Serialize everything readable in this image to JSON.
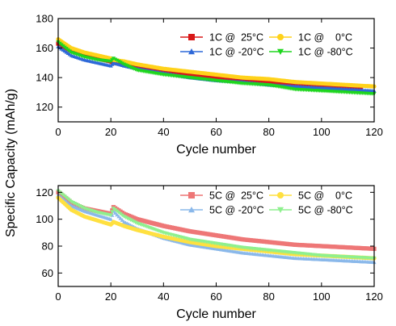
{
  "figure": {
    "ylabel_shared": "Specific Capacity (mAh/g)"
  },
  "chart_data": [
    {
      "type": "scatter",
      "xlabel": "Cycle number",
      "ylabel": "Specific Capacity (mAh/g)",
      "xlim": [
        0,
        120
      ],
      "ylim": [
        110,
        180
      ],
      "xticks": [
        0,
        20,
        40,
        60,
        80,
        100,
        120
      ],
      "yticks": [
        120,
        140,
        160,
        180
      ],
      "grid": false,
      "legend": "top-right",
      "series": [
        {
          "name": "1C @  25°C",
          "color": "#d81818",
          "marker": "square",
          "x": [
            0,
            5,
            10,
            15,
            20,
            21,
            25,
            30,
            40,
            50,
            60,
            70,
            80,
            90,
            100,
            110,
            115
          ],
          "y": [
            163,
            158,
            155,
            153,
            151,
            150,
            149,
            147,
            144,
            142,
            140,
            138,
            137,
            135,
            134,
            133,
            132
          ]
        },
        {
          "name": "1C @ -20°C",
          "color": "#2d68d8",
          "marker": "triangle",
          "x": [
            0,
            5,
            10,
            15,
            20,
            21,
            25,
            30,
            40,
            50,
            60,
            70,
            80,
            90,
            100,
            110,
            120
          ],
          "y": [
            161,
            155,
            152,
            150,
            148,
            150,
            148,
            146,
            143,
            140,
            138,
            137,
            135,
            134,
            133,
            132,
            131
          ]
        },
        {
          "name": "1C @    0°C",
          "color": "#ffd21a",
          "marker": "circle",
          "x": [
            0,
            5,
            10,
            15,
            20,
            21,
            25,
            30,
            40,
            50,
            60,
            70,
            80,
            90,
            100,
            110,
            120
          ],
          "y": [
            166,
            160,
            157,
            155,
            153,
            152,
            151,
            149,
            146,
            144,
            142,
            140,
            139,
            137,
            136,
            135,
            134
          ]
        },
        {
          "name": "1C @ -80°C",
          "color": "#1ed61e",
          "marker": "triangle-down",
          "x": [
            0,
            5,
            10,
            15,
            20,
            21,
            25,
            30,
            40,
            50,
            60,
            70,
            80,
            90,
            100,
            110,
            120
          ],
          "y": [
            164,
            157,
            154,
            152,
            151,
            153,
            149,
            145,
            142,
            140,
            138,
            136,
            135,
            132,
            131,
            130,
            129
          ]
        }
      ]
    },
    {
      "type": "scatter",
      "xlabel": "Cycle number",
      "ylabel": "Specific Capacity (mAh/g)",
      "xlim": [
        0,
        120
      ],
      "ylim": [
        50,
        125
      ],
      "xticks": [
        0,
        20,
        40,
        60,
        80,
        100,
        120
      ],
      "yticks": [
        60,
        80,
        100,
        120
      ],
      "grid": false,
      "legend": "top-right",
      "series": [
        {
          "name": "5C @  25°C",
          "color": "#ee7777",
          "marker": "square",
          "x": [
            0,
            5,
            10,
            15,
            20,
            21,
            25,
            30,
            40,
            50,
            60,
            70,
            80,
            90,
            100,
            110,
            120
          ],
          "y": [
            120,
            112,
            108,
            106,
            104,
            109,
            104,
            100,
            95,
            91,
            88,
            85,
            83,
            81,
            80,
            79,
            78
          ]
        },
        {
          "name": "5C @ -20°C",
          "color": "#8ab8ea",
          "marker": "triangle",
          "x": [
            0,
            5,
            10,
            15,
            20,
            21,
            25,
            30,
            40,
            50,
            60,
            70,
            80,
            90,
            100,
            110,
            120
          ],
          "y": [
            118,
            110,
            106,
            103,
            100,
            106,
            98,
            93,
            86,
            81,
            78,
            75,
            73,
            71,
            70,
            69,
            68
          ]
        },
        {
          "name": "5C @    0°C",
          "color": "#ffe040",
          "marker": "circle",
          "x": [
            0,
            5,
            10,
            15,
            20,
            21,
            25,
            30,
            40,
            50,
            60,
            70,
            80,
            90,
            100,
            110,
            120
          ],
          "y": [
            116,
            107,
            102,
            99,
            96,
            98,
            95,
            92,
            87,
            83,
            80,
            78,
            76,
            74,
            73,
            72,
            71
          ]
        },
        {
          "name": "5C @ -80°C",
          "color": "#8ef08e",
          "marker": "triangle-down",
          "x": [
            0,
            5,
            10,
            15,
            20,
            21,
            25,
            30,
            40,
            50,
            60,
            70,
            80,
            90,
            100,
            110,
            120
          ],
          "y": [
            121,
            113,
            108,
            105,
            103,
            108,
            102,
            97,
            90,
            85,
            82,
            79,
            77,
            75,
            73,
            72,
            71
          ]
        }
      ]
    }
  ]
}
